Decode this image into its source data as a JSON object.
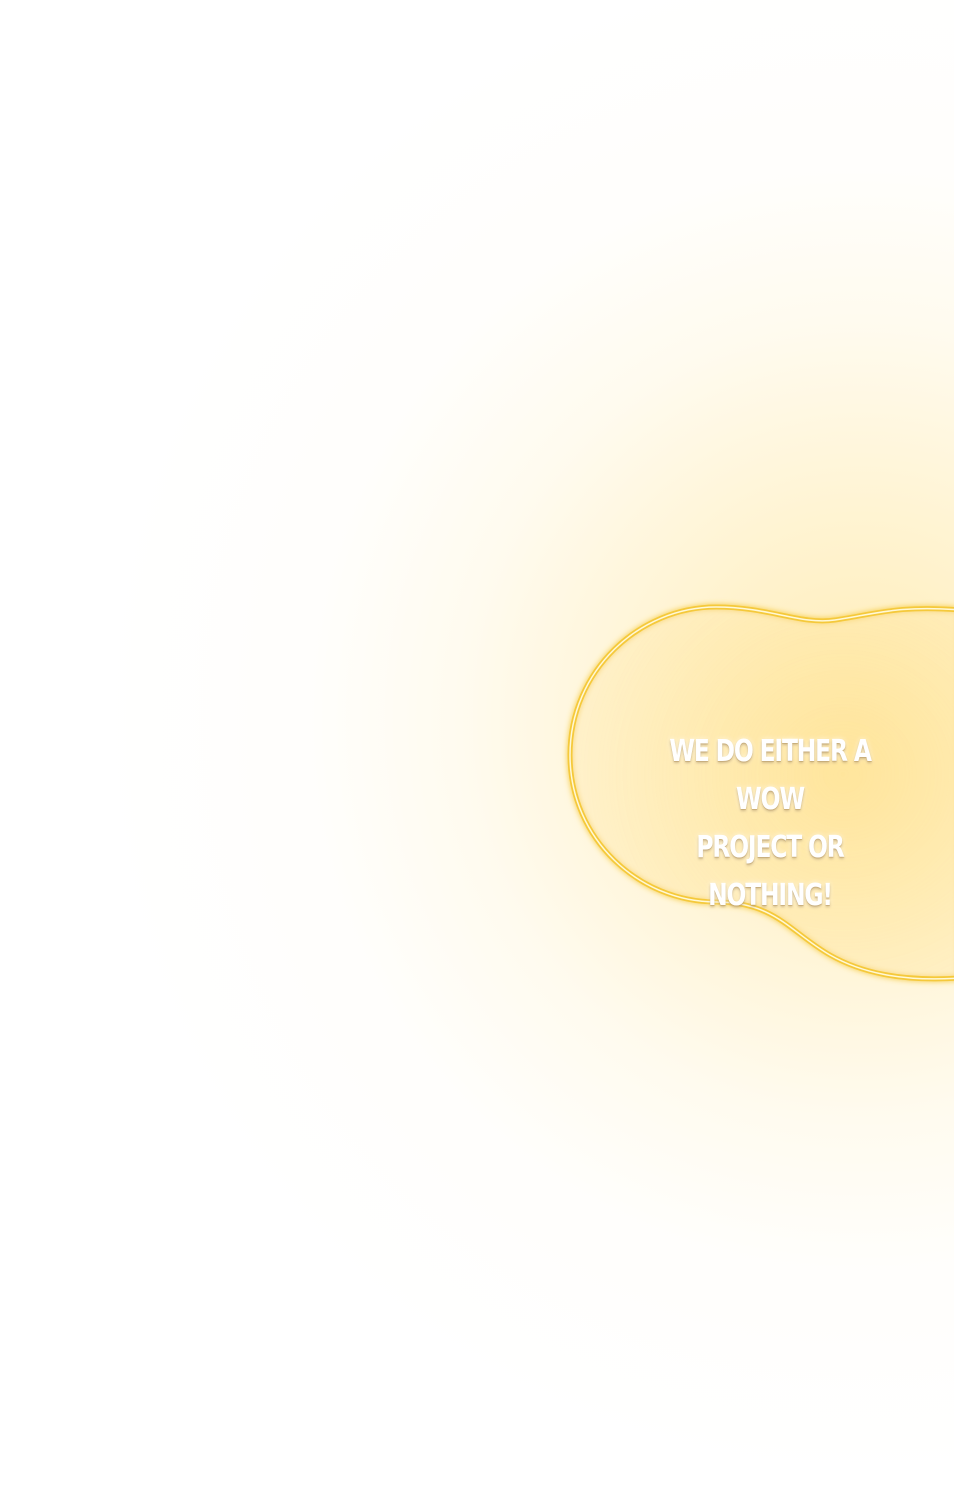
{
  "hero": {
    "slogan_line1": "We do either a WOW",
    "slogan_line2": "project or nothing!"
  },
  "colors": {
    "glow": "#ffdd78",
    "outline": "#f7cf3f",
    "text": "#ffffff"
  }
}
